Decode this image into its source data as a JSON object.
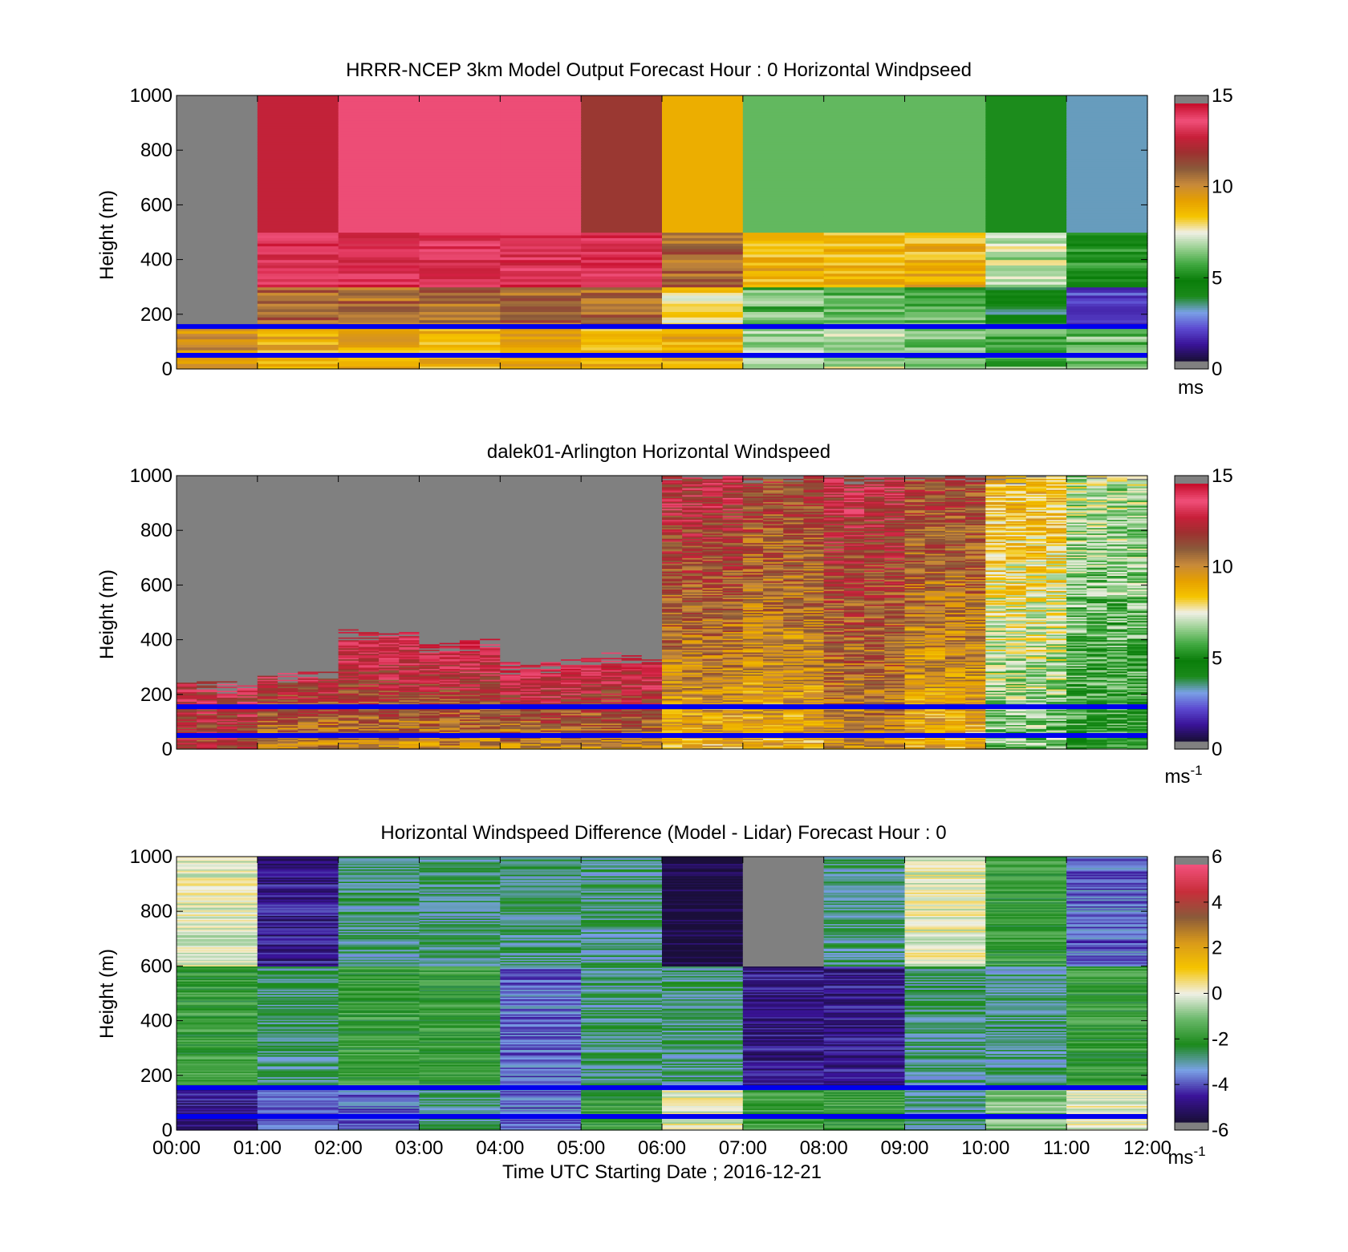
{
  "xlabel": "Time UTC  Starting Date ; 2016-12-21",
  "time_ticks": [
    "00:00",
    "01:00",
    "02:00",
    "03:00",
    "04:00",
    "05:00",
    "06:00",
    "07:00",
    "08:00",
    "09:00",
    "10:00",
    "11:00",
    "12:00"
  ],
  "colors": {
    "blue_lines": "#0000ee",
    "missing_gray": "#808080",
    "cb_wind": [
      "#1a0f3a",
      "#3a1399",
      "#5c4bd1",
      "#7aa1e6",
      "#1b8a1b",
      "#0a7e0a",
      "#3fa83f",
      "#97cf8f",
      "#f0f0e6",
      "#f5c400",
      "#e6a000",
      "#c88a3a",
      "#8a5a3a",
      "#9e3030",
      "#c8203a",
      "#f0507a",
      "#c8102e"
    ],
    "cb_diff": [
      "#1a0f3a",
      "#3a1399",
      "#7aa1e6",
      "#1b8a1b",
      "#6ab86a",
      "#f0f0e6",
      "#f5c400",
      "#d99a1a",
      "#8a5a3a",
      "#c82e3a",
      "#f0507a"
    ]
  },
  "chart_data": [
    {
      "type": "heatmap",
      "title": "HRRR-NCEP 3km Model Output   Forecast Hour : 0 Horizontal Windpseed",
      "ylabel": "Height (m)",
      "ylim": [
        0,
        1000
      ],
      "yticks": [
        "0",
        "200",
        "400",
        "600",
        "800",
        "1000"
      ],
      "xlim": [
        "00:00",
        "12:00"
      ],
      "colorbar": {
        "range": [
          0,
          15
        ],
        "ticks": [
          "0",
          "5",
          "10",
          "15"
        ],
        "unit": "ms"
      },
      "horizontal_lines_m": [
        50,
        155
      ],
      "columns_hourly": [
        {
          "time": "00:00",
          "speed_low": 10,
          "speed_mid": null,
          "speed_top": null
        },
        {
          "time": "01:00",
          "speed_low": 9,
          "speed_mid": 14,
          "speed_top": 13
        },
        {
          "time": "02:00",
          "speed_low": 9,
          "speed_mid": 14,
          "speed_top": 14
        },
        {
          "time": "03:00",
          "speed_low": 9,
          "speed_mid": 14,
          "speed_top": 14
        },
        {
          "time": "04:00",
          "speed_low": 9,
          "speed_mid": 14,
          "speed_top": 14
        },
        {
          "time": "05:00",
          "speed_low": 9,
          "speed_mid": 14,
          "speed_top": 12
        },
        {
          "time": "06:00",
          "speed_low": 9,
          "speed_mid": 11,
          "speed_top": 9
        },
        {
          "time": "07:00",
          "speed_low": 7,
          "speed_mid": 9,
          "speed_top": 6
        },
        {
          "time": "08:00",
          "speed_low": 7,
          "speed_mid": 9,
          "speed_top": 6
        },
        {
          "time": "09:00",
          "speed_low": 6,
          "speed_mid": 9,
          "speed_top": 6
        },
        {
          "time": "10:00",
          "speed_low": 6,
          "speed_mid": 7,
          "speed_top": 5
        },
        {
          "time": "11:00",
          "speed_low": 6,
          "speed_mid": 5,
          "speed_top": 3
        }
      ]
    },
    {
      "type": "heatmap",
      "title": "dalek01-Arlington  Horizontal Windspeed",
      "ylabel": "Height (m)",
      "ylim": [
        0,
        1000
      ],
      "yticks": [
        "0",
        "200",
        "400",
        "600",
        "800",
        "1000"
      ],
      "xlim": [
        "00:00",
        "12:00"
      ],
      "colorbar": {
        "range": [
          0,
          15
        ],
        "ticks": [
          "0",
          "5",
          "10",
          "15"
        ],
        "unit": "ms",
        "unit_sup": "-1"
      },
      "horizontal_lines_m": [
        50,
        155
      ],
      "columns_hourly": [
        {
          "time": "00:00",
          "top_of_data_m": 230,
          "speed_low": 12,
          "speed_high": 13
        },
        {
          "time": "01:00",
          "top_of_data_m": 270,
          "speed_low": 10,
          "speed_high": 13
        },
        {
          "time": "02:00",
          "top_of_data_m": 420,
          "speed_low": 10,
          "speed_high": 14
        },
        {
          "time": "03:00",
          "top_of_data_m": 380,
          "speed_low": 10,
          "speed_high": 14
        },
        {
          "time": "04:00",
          "top_of_data_m": 300,
          "speed_low": 10,
          "speed_high": 14
        },
        {
          "time": "05:00",
          "top_of_data_m": 330,
          "speed_low": 10,
          "speed_high": 14
        },
        {
          "time": "06:00",
          "top_of_data_m": 1000,
          "speed_low": 9,
          "speed_high": 13
        },
        {
          "time": "07:00",
          "top_of_data_m": 1000,
          "speed_low": 9,
          "speed_high": 12
        },
        {
          "time": "08:00",
          "top_of_data_m": 1000,
          "speed_low": 10,
          "speed_high": 13
        },
        {
          "time": "09:00",
          "top_of_data_m": 1000,
          "speed_low": 9,
          "speed_high": 12
        },
        {
          "time": "10:00",
          "top_of_data_m": 1000,
          "speed_low": 6,
          "speed_high": 9
        },
        {
          "time": "11:00",
          "top_of_data_m": 1000,
          "speed_low": 5,
          "speed_high": 7
        }
      ]
    },
    {
      "type": "heatmap",
      "title": "Horizontal Windspeed Difference (Model - Lidar) Forecast Hour : 0",
      "ylabel": "Height (m)",
      "ylim": [
        0,
        1000
      ],
      "yticks": [
        "0",
        "200",
        "400",
        "600",
        "800",
        "1000"
      ],
      "xlim": [
        "00:00",
        "12:00"
      ],
      "colorbar": {
        "range": [
          -6,
          6
        ],
        "ticks": [
          "-6",
          "-4",
          "-2",
          "0",
          "2",
          "4",
          "6"
        ],
        "unit": "ms",
        "unit_sup": "-1"
      },
      "horizontal_lines_m": [
        50,
        155
      ],
      "columns_hourly": [
        {
          "time": "00:00",
          "diff_low": -5,
          "diff_mid": -2,
          "diff_top": 0
        },
        {
          "time": "01:00",
          "diff_low": -4,
          "diff_mid": -3,
          "diff_top": -5
        },
        {
          "time": "02:00",
          "diff_low": -4,
          "diff_mid": -2,
          "diff_top": -3
        },
        {
          "time": "03:00",
          "diff_low": -3,
          "diff_mid": -2,
          "diff_top": -3
        },
        {
          "time": "04:00",
          "diff_low": -4,
          "diff_mid": -4,
          "diff_top": -3
        },
        {
          "time": "05:00",
          "diff_low": -2,
          "diff_mid": -3,
          "diff_top": -3
        },
        {
          "time": "06:00",
          "diff_low": 0,
          "diff_mid": -3,
          "diff_top": -6
        },
        {
          "time": "07:00",
          "diff_low": -2,
          "diff_mid": -5,
          "diff_top": null
        },
        {
          "time": "08:00",
          "diff_low": -2,
          "diff_mid": -5,
          "diff_top": -3
        },
        {
          "time": "09:00",
          "diff_low": -3,
          "diff_mid": -3,
          "diff_top": 0
        },
        {
          "time": "10:00",
          "diff_low": -1,
          "diff_mid": -3,
          "diff_top": -2
        },
        {
          "time": "11:00",
          "diff_low": 0,
          "diff_mid": -2,
          "diff_top": -4
        }
      ]
    }
  ]
}
